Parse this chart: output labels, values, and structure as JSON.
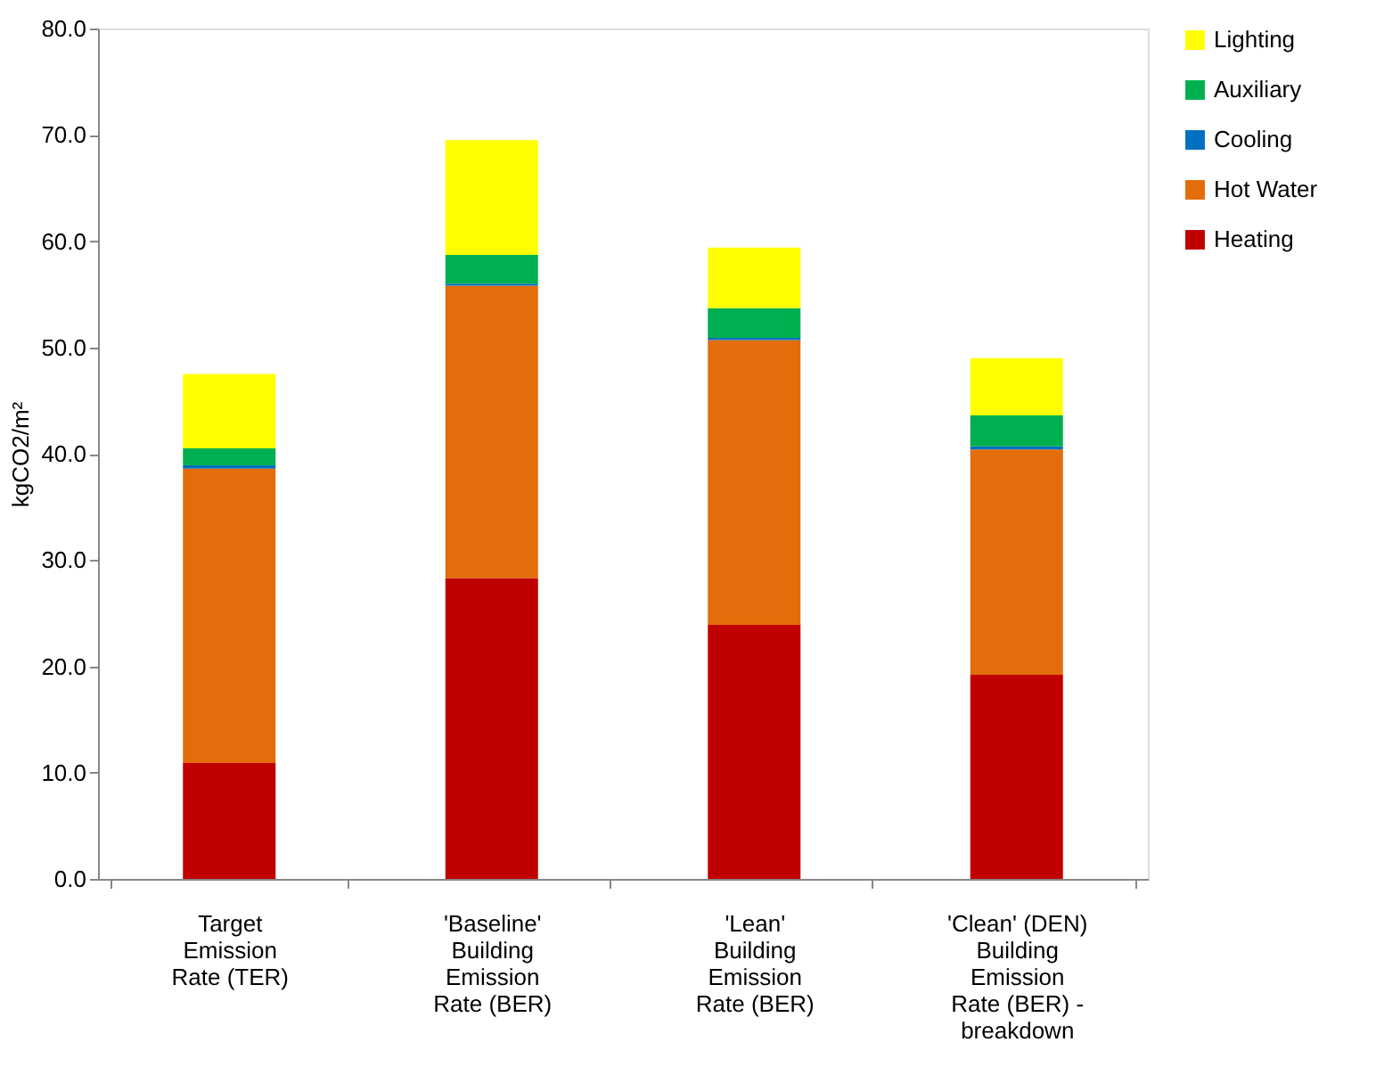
{
  "chart_data": {
    "type": "bar",
    "stacked": true,
    "categories": [
      "Target Emission Rate (TER)",
      "'Baseline' Building Emission Rate (BER)",
      "'Lean' Building Emission Rate (BER)",
      "'Clean' (DEN) Building Emission Rate (BER) - breakdown"
    ],
    "ylabel": "kgCO2/m²",
    "ylim": [
      0,
      80
    ],
    "yticks": [
      {
        "value": 0,
        "label": "0.0"
      },
      {
        "value": 10,
        "label": "10.0"
      },
      {
        "value": 20,
        "label": "20.0"
      },
      {
        "value": 30,
        "label": "30.0"
      },
      {
        "value": 40,
        "label": "40.0"
      },
      {
        "value": 50,
        "label": "50.0"
      },
      {
        "value": 60,
        "label": "60.0"
      },
      {
        "value": 70,
        "label": "70.0"
      },
      {
        "value": 80,
        "label": "80.0"
      }
    ],
    "grid": false,
    "legend": "right",
    "series": [
      {
        "name": "Heating",
        "color": "#c00000",
        "values": [
          10.9,
          28.3,
          23.9,
          19.2
        ]
      },
      {
        "name": "Hot Water",
        "color": "#e46c0a",
        "values": [
          27.7,
          27.5,
          26.8,
          21.2
        ]
      },
      {
        "name": "Cooling",
        "color": "#0070c0",
        "values": [
          0.3,
          0.2,
          0.2,
          0.3
        ]
      },
      {
        "name": "Auxiliary",
        "color": "#00b050",
        "values": [
          1.6,
          2.7,
          2.8,
          2.9
        ]
      },
      {
        "name": "Lighting",
        "color": "#ffff00",
        "values": [
          7.0,
          10.8,
          5.7,
          5.4
        ]
      }
    ]
  }
}
